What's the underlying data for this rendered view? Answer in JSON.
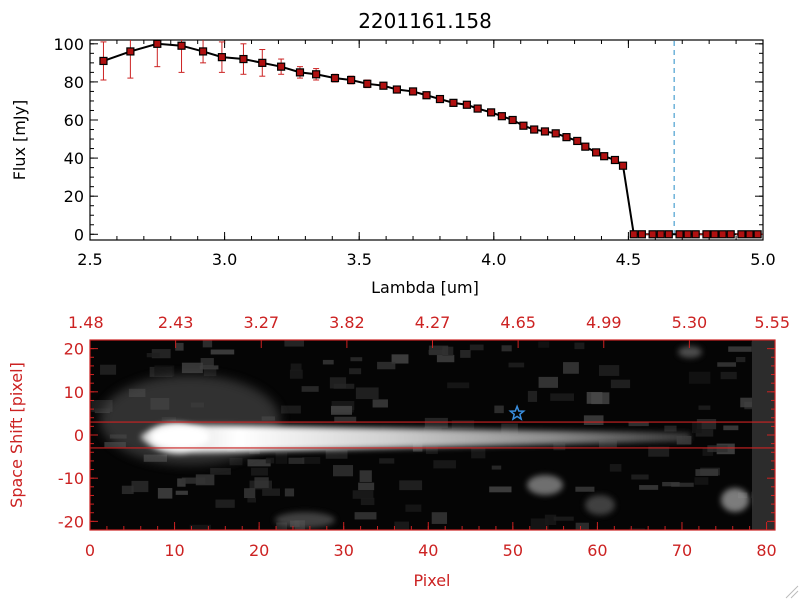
{
  "colors": {
    "axis_black": "#000000",
    "accent_red": "#cc2222",
    "marker_red": "#b01010",
    "marker_outline": "#000000",
    "dashed_line": "#4aa0d0",
    "star": "#3a8fe0"
  },
  "chart_data": [
    {
      "type": "line",
      "title": "2201161.158",
      "xlabel": "Lambda [um]",
      "ylabel": "Flux [mJy]",
      "xlim": [
        2.5,
        5.0
      ],
      "ylim": [
        -3,
        102
      ],
      "x_ticks": [
        "2.5",
        "3.0",
        "3.5",
        "4.0",
        "4.5",
        "5.0"
      ],
      "y_ticks": [
        "0",
        "20",
        "40",
        "60",
        "80",
        "100"
      ],
      "vline_x": 4.67,
      "series": [
        {
          "x": [
            2.55,
            2.65,
            2.75,
            2.84,
            2.92,
            2.99,
            3.07,
            3.14,
            3.21,
            3.28,
            3.34,
            3.41,
            3.47,
            3.53,
            3.59,
            3.64,
            3.7,
            3.75,
            3.8,
            3.85,
            3.9,
            3.94,
            3.99,
            4.03,
            4.07,
            4.11,
            4.15,
            4.19,
            4.23,
            4.27,
            4.31,
            4.34,
            4.38,
            4.41,
            4.45,
            4.48,
            4.52,
            4.55,
            4.59,
            4.62,
            4.65,
            4.69,
            4.72,
            4.75,
            4.79,
            4.82,
            4.85,
            4.88,
            4.92,
            4.95,
            4.98
          ],
          "y": [
            91,
            96,
            100,
            99,
            96,
            93,
            92,
            90,
            88,
            85,
            84,
            82,
            81,
            79,
            78,
            76,
            75,
            73,
            71,
            69,
            68,
            66,
            64,
            62,
            60,
            57,
            55,
            54,
            53,
            51,
            49,
            46,
            43,
            41,
            39,
            36,
            0,
            0,
            0,
            0,
            0,
            0,
            0,
            0,
            0,
            0,
            0,
            0,
            0,
            0,
            0
          ],
          "err": [
            10,
            14,
            12,
            14,
            6,
            8,
            8,
            7,
            4,
            3,
            3,
            2,
            2,
            2,
            1,
            1,
            1,
            1,
            1,
            1,
            1,
            1,
            1,
            1,
            1,
            1,
            1,
            1,
            1,
            1,
            1,
            1,
            1,
            1,
            1,
            1,
            0,
            0,
            0,
            0,
            0,
            0,
            0,
            0,
            0,
            0,
            0,
            0,
            0,
            0,
            0
          ]
        }
      ]
    },
    {
      "type": "heatmap",
      "xlabel": "Pixel",
      "ylabel": "Space Shift [pixel]",
      "xlim": [
        0,
        81
      ],
      "ylim": [
        -22,
        22
      ],
      "x_ticks": [
        "0",
        "10",
        "20",
        "30",
        "40",
        "50",
        "60",
        "70",
        "80"
      ],
      "y_ticks": [
        "-20",
        "-10",
        "0",
        "10",
        "20"
      ],
      "top_ticks": [
        "1.48",
        "2.43",
        "3.27",
        "3.82",
        "4.27",
        "4.65",
        "4.99",
        "5.30",
        "5.55"
      ],
      "hlines": [
        3,
        -3
      ],
      "star": {
        "x": 50.5,
        "y": 5
      }
    }
  ]
}
